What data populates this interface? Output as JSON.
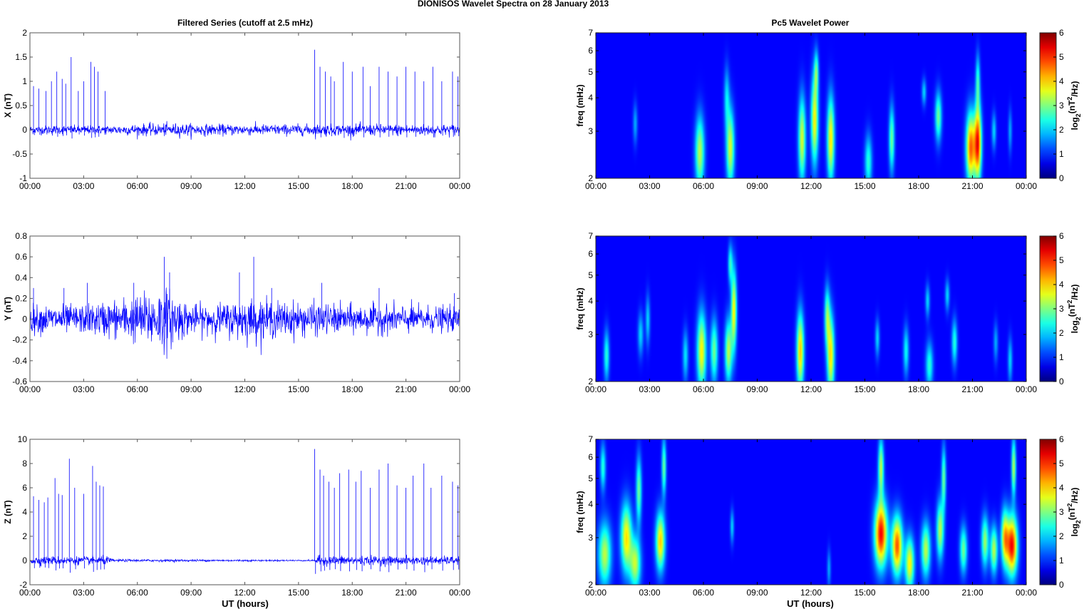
{
  "figure": {
    "title": "DIONISOS Wavelet Spectra on 28 January   2013",
    "left_title": "Filtered Series (cutoff at 2.5 mHz)",
    "right_title": "Pc5 Wavelet Power",
    "xlabel": "UT (hours)"
  },
  "chart_data": [
    {
      "type": "line",
      "title": "Filtered Series (cutoff at 2.5 mHz)",
      "ylabel": "X (nT)",
      "xlabel": "",
      "xlim": [
        0,
        24
      ],
      "ylim": [
        -1,
        2
      ],
      "yticks": [
        -1,
        -0.5,
        0,
        0.5,
        1,
        1.5,
        2
      ],
      "xticks": [
        "00:00",
        "03:00",
        "06:00",
        "09:00",
        "12:00",
        "15:00",
        "18:00",
        "21:00",
        "00:00"
      ],
      "noise": [
        [
          0,
          0.08
        ],
        [
          4.5,
          0.08
        ],
        [
          5.5,
          0.1
        ],
        [
          8,
          0.12
        ],
        [
          10,
          0.1
        ],
        [
          12,
          0.1
        ],
        [
          15,
          0.1
        ],
        [
          18,
          0.1
        ],
        [
          21,
          0.1
        ],
        [
          24,
          0.1
        ]
      ],
      "spikes": [
        [
          0.2,
          0.9
        ],
        [
          0.5,
          0.85
        ],
        [
          0.9,
          0.8
        ],
        [
          1.2,
          1.0
        ],
        [
          1.5,
          1.2
        ],
        [
          1.8,
          1.05
        ],
        [
          2.0,
          0.95
        ],
        [
          2.3,
          1.5
        ],
        [
          2.7,
          0.8
        ],
        [
          3.0,
          1.0
        ],
        [
          3.4,
          1.4
        ],
        [
          3.6,
          1.3
        ],
        [
          3.8,
          1.2
        ],
        [
          4.2,
          0.8
        ],
        [
          15.9,
          1.65
        ],
        [
          16.2,
          1.3
        ],
        [
          16.5,
          1.2
        ],
        [
          16.8,
          1.1
        ],
        [
          17.0,
          1.0
        ],
        [
          17.5,
          1.4
        ],
        [
          18.0,
          1.2
        ],
        [
          18.6,
          1.3
        ],
        [
          19.0,
          0.9
        ],
        [
          19.5,
          1.3
        ],
        [
          20.0,
          1.2
        ],
        [
          20.5,
          1.1
        ],
        [
          21.0,
          1.3
        ],
        [
          21.5,
          1.2
        ],
        [
          22.0,
          1.0
        ],
        [
          22.5,
          1.3
        ],
        [
          23.0,
          1.0
        ],
        [
          23.6,
          1.2
        ],
        [
          23.9,
          1.1
        ]
      ],
      "series": [
        {
          "values_description_free": true,
          "color": "#0000ff"
        }
      ]
    },
    {
      "type": "line",
      "ylabel": "Y (nT)",
      "xlim": [
        0,
        24
      ],
      "ylim": [
        -0.6,
        0.8
      ],
      "yticks": [
        -0.6,
        -0.4,
        -0.2,
        0,
        0.2,
        0.4,
        0.6,
        0.8
      ],
      "xticks": [
        "00:00",
        "03:00",
        "06:00",
        "09:00",
        "12:00",
        "15:00",
        "18:00",
        "21:00",
        "00:00"
      ],
      "noise": [
        [
          0,
          0.12
        ],
        [
          3,
          0.12
        ],
        [
          6,
          0.2
        ],
        [
          7.5,
          0.28
        ],
        [
          9,
          0.12
        ],
        [
          11,
          0.14
        ],
        [
          12,
          0.18
        ],
        [
          14,
          0.15
        ],
        [
          18,
          0.12
        ],
        [
          21,
          0.12
        ],
        [
          24,
          0.1
        ]
      ],
      "spikes": [
        [
          0.2,
          0.3
        ],
        [
          1.9,
          0.3
        ],
        [
          3.2,
          0.35
        ],
        [
          5.8,
          0.35
        ],
        [
          7.5,
          0.6
        ],
        [
          7.8,
          0.45
        ],
        [
          11.7,
          0.45
        ],
        [
          12.5,
          0.6
        ],
        [
          13.5,
          0.3
        ],
        [
          16.3,
          0.35
        ],
        [
          19.5,
          0.3
        ],
        [
          23.7,
          0.25
        ]
      ],
      "series": [
        {
          "color": "#0000ff"
        }
      ]
    },
    {
      "type": "line",
      "ylabel": "Z (nT)",
      "xlabel": "UT (hours)",
      "xlim": [
        0,
        24
      ],
      "ylim": [
        -2,
        10
      ],
      "yticks": [
        -2,
        0,
        2,
        4,
        6,
        8,
        10
      ],
      "xticks": [
        "00:00",
        "03:00",
        "06:00",
        "09:00",
        "12:00",
        "15:00",
        "18:00",
        "21:00",
        "00:00"
      ],
      "noise": [
        [
          0,
          0.3
        ],
        [
          4.4,
          0.3
        ],
        [
          4.6,
          0.1
        ],
        [
          15.9,
          0.05
        ],
        [
          16.0,
          0.35
        ],
        [
          24,
          0.3
        ]
      ],
      "spikes": [
        [
          0.2,
          5.3
        ],
        [
          0.5,
          5.0
        ],
        [
          0.8,
          4.8
        ],
        [
          1.0,
          5.2
        ],
        [
          1.4,
          6.8
        ],
        [
          1.6,
          5.5
        ],
        [
          1.8,
          5.4
        ],
        [
          2.2,
          8.4
        ],
        [
          2.5,
          6.0
        ],
        [
          3.0,
          5.5
        ],
        [
          3.5,
          7.8
        ],
        [
          3.7,
          6.5
        ],
        [
          3.9,
          6.2
        ],
        [
          4.1,
          6.1
        ],
        [
          15.9,
          9.2
        ],
        [
          16.2,
          7.5
        ],
        [
          16.4,
          7.0
        ],
        [
          16.7,
          6.5
        ],
        [
          17.0,
          6.0
        ],
        [
          17.3,
          7.2
        ],
        [
          17.8,
          7.5
        ],
        [
          18.2,
          6.5
        ],
        [
          18.5,
          7.4
        ],
        [
          19.0,
          6.0
        ],
        [
          19.5,
          7.5
        ],
        [
          20.0,
          8.0
        ],
        [
          20.5,
          6.2
        ],
        [
          21.0,
          6.0
        ],
        [
          21.4,
          7.0
        ],
        [
          22.0,
          8.0
        ],
        [
          22.4,
          6.0
        ],
        [
          23.0,
          7.0
        ],
        [
          23.6,
          6.5
        ],
        [
          23.9,
          6.2
        ]
      ],
      "series": [
        {
          "color": "#0000ff"
        }
      ]
    },
    {
      "type": "heatmap",
      "title": "Pc5 Wavelet Power",
      "ylabel": "freq (mHz)",
      "xlim": [
        0,
        24
      ],
      "ylim": [
        2,
        7
      ],
      "yscale": "log",
      "yticks": [
        2,
        3,
        4,
        5,
        6,
        7
      ],
      "xticks": [
        "00:00",
        "03:00",
        "06:00",
        "09:00",
        "12:00",
        "15:00",
        "18:00",
        "21:00",
        "00:00"
      ],
      "colorbar": {
        "label": "log2(nT2/Hz)",
        "range": [
          0,
          6
        ],
        "ticks": [
          0,
          1,
          2,
          3,
          4,
          5,
          6
        ]
      },
      "blobs": [
        [
          2.2,
          3.2,
          0.12,
          0.6,
          1.2
        ],
        [
          5.8,
          2.5,
          0.25,
          0.9,
          3.0
        ],
        [
          7.5,
          2.6,
          0.22,
          1.0,
          3.2
        ],
        [
          7.3,
          4.0,
          0.15,
          1.2,
          1.5
        ],
        [
          11.5,
          2.8,
          0.2,
          1.2,
          3.2
        ],
        [
          12.2,
          3.3,
          0.2,
          1.5,
          3.5
        ],
        [
          12.3,
          5.0,
          0.12,
          1.0,
          2.0
        ],
        [
          13.1,
          2.8,
          0.2,
          1.2,
          3.6
        ],
        [
          15.2,
          2.3,
          0.2,
          0.6,
          2.0
        ],
        [
          16.5,
          2.8,
          0.15,
          0.9,
          2.5
        ],
        [
          18.3,
          4.2,
          0.12,
          0.5,
          1.5
        ],
        [
          19.1,
          3.4,
          0.18,
          0.8,
          2.5
        ],
        [
          20.9,
          2.6,
          0.25,
          0.9,
          4.5
        ],
        [
          21.3,
          2.7,
          0.2,
          1.0,
          5.0
        ],
        [
          21.3,
          4.6,
          0.12,
          1.2,
          2.0
        ],
        [
          22.2,
          3.0,
          0.12,
          0.5,
          1.5
        ],
        [
          23.1,
          3.0,
          0.1,
          0.6,
          1.2
        ]
      ]
    },
    {
      "type": "heatmap",
      "ylabel": "freq (mHz)",
      "xlim": [
        0,
        24
      ],
      "ylim": [
        2,
        7
      ],
      "yscale": "log",
      "yticks": [
        2,
        3,
        4,
        5,
        6,
        7
      ],
      "xticks": [
        "00:00",
        "03:00",
        "06:00",
        "09:00",
        "12:00",
        "15:00",
        "18:00",
        "21:00",
        "00:00"
      ],
      "colorbar": {
        "label": "log2(nT2/Hz)",
        "range": [
          0,
          6
        ],
        "ticks": [
          0,
          1,
          2,
          3,
          4,
          5,
          6
        ]
      },
      "blobs": [
        [
          0.6,
          2.5,
          0.15,
          0.6,
          2.0
        ],
        [
          2.5,
          3.0,
          0.15,
          0.6,
          1.5
        ],
        [
          2.9,
          3.4,
          0.12,
          0.8,
          1.5
        ],
        [
          5.0,
          2.5,
          0.15,
          0.6,
          1.6
        ],
        [
          5.9,
          2.6,
          0.25,
          1.0,
          3.5
        ],
        [
          6.6,
          2.6,
          0.2,
          0.8,
          2.5
        ],
        [
          7.4,
          2.6,
          0.2,
          0.8,
          3.0
        ],
        [
          7.7,
          3.7,
          0.15,
          1.5,
          3.5
        ],
        [
          7.5,
          5.5,
          0.12,
          1.0,
          2.0
        ],
        [
          11.4,
          2.6,
          0.2,
          1.0,
          3.8
        ],
        [
          13.1,
          2.5,
          0.2,
          1.0,
          3.6
        ],
        [
          12.9,
          3.5,
          0.15,
          1.0,
          2.5
        ],
        [
          15.7,
          2.9,
          0.12,
          0.5,
          1.5
        ],
        [
          17.3,
          2.6,
          0.15,
          0.6,
          1.8
        ],
        [
          18.5,
          4.0,
          0.12,
          0.6,
          1.5
        ],
        [
          18.6,
          2.3,
          0.2,
          0.5,
          2.0
        ],
        [
          19.6,
          4.2,
          0.12,
          0.6,
          1.5
        ],
        [
          20.0,
          2.8,
          0.15,
          0.6,
          2.0
        ],
        [
          22.3,
          2.8,
          0.12,
          0.5,
          1.2
        ],
        [
          23.1,
          2.4,
          0.12,
          0.5,
          1.5
        ]
      ]
    },
    {
      "type": "heatmap",
      "ylabel": "freq (mHz)",
      "xlabel": "UT (hours)",
      "xlim": [
        0,
        24
      ],
      "ylim": [
        2,
        7
      ],
      "yscale": "log",
      "yticks": [
        2,
        3,
        4,
        5,
        6,
        7
      ],
      "xticks": [
        "00:00",
        "03:00",
        "06:00",
        "09:00",
        "12:00",
        "15:00",
        "18:00",
        "21:00",
        "00:00"
      ],
      "colorbar": {
        "label": "log2(nT2/Hz)",
        "range": [
          0,
          6
        ],
        "ticks": [
          0,
          1,
          2,
          3,
          4,
          5,
          6
        ]
      },
      "blobs": [
        [
          0.5,
          2.6,
          0.35,
          0.8,
          3.0
        ],
        [
          0.4,
          5.5,
          0.15,
          1.2,
          2.0
        ],
        [
          1.7,
          3.0,
          0.3,
          1.0,
          3.6
        ],
        [
          2.2,
          2.4,
          0.3,
          0.6,
          3.0
        ],
        [
          2.4,
          4.5,
          0.15,
          1.5,
          2.5
        ],
        [
          3.6,
          2.9,
          0.25,
          0.8,
          3.8
        ],
        [
          3.8,
          5.5,
          0.12,
          1.5,
          2.5
        ],
        [
          7.6,
          3.3,
          0.1,
          0.5,
          1.5
        ],
        [
          13.0,
          2.3,
          0.1,
          0.4,
          1.2
        ],
        [
          15.9,
          3.1,
          0.35,
          1.0,
          5.2
        ],
        [
          16.8,
          2.8,
          0.3,
          0.8,
          4.6
        ],
        [
          15.9,
          5.5,
          0.15,
          1.5,
          3.0
        ],
        [
          17.5,
          2.4,
          0.25,
          0.6,
          3.5
        ],
        [
          18.4,
          2.7,
          0.25,
          0.7,
          3.0
        ],
        [
          19.2,
          3.2,
          0.2,
          0.9,
          3.0
        ],
        [
          19.4,
          5.0,
          0.12,
          1.5,
          2.5
        ],
        [
          20.5,
          2.7,
          0.2,
          0.6,
          2.5
        ],
        [
          21.7,
          2.9,
          0.2,
          0.7,
          2.8
        ],
        [
          22.2,
          2.7,
          0.2,
          0.6,
          3.0
        ],
        [
          22.8,
          3.0,
          0.2,
          0.8,
          3.5
        ],
        [
          23.2,
          2.8,
          0.3,
          0.8,
          5.2
        ],
        [
          23.3,
          5.5,
          0.12,
          1.5,
          3.0
        ]
      ]
    }
  ]
}
